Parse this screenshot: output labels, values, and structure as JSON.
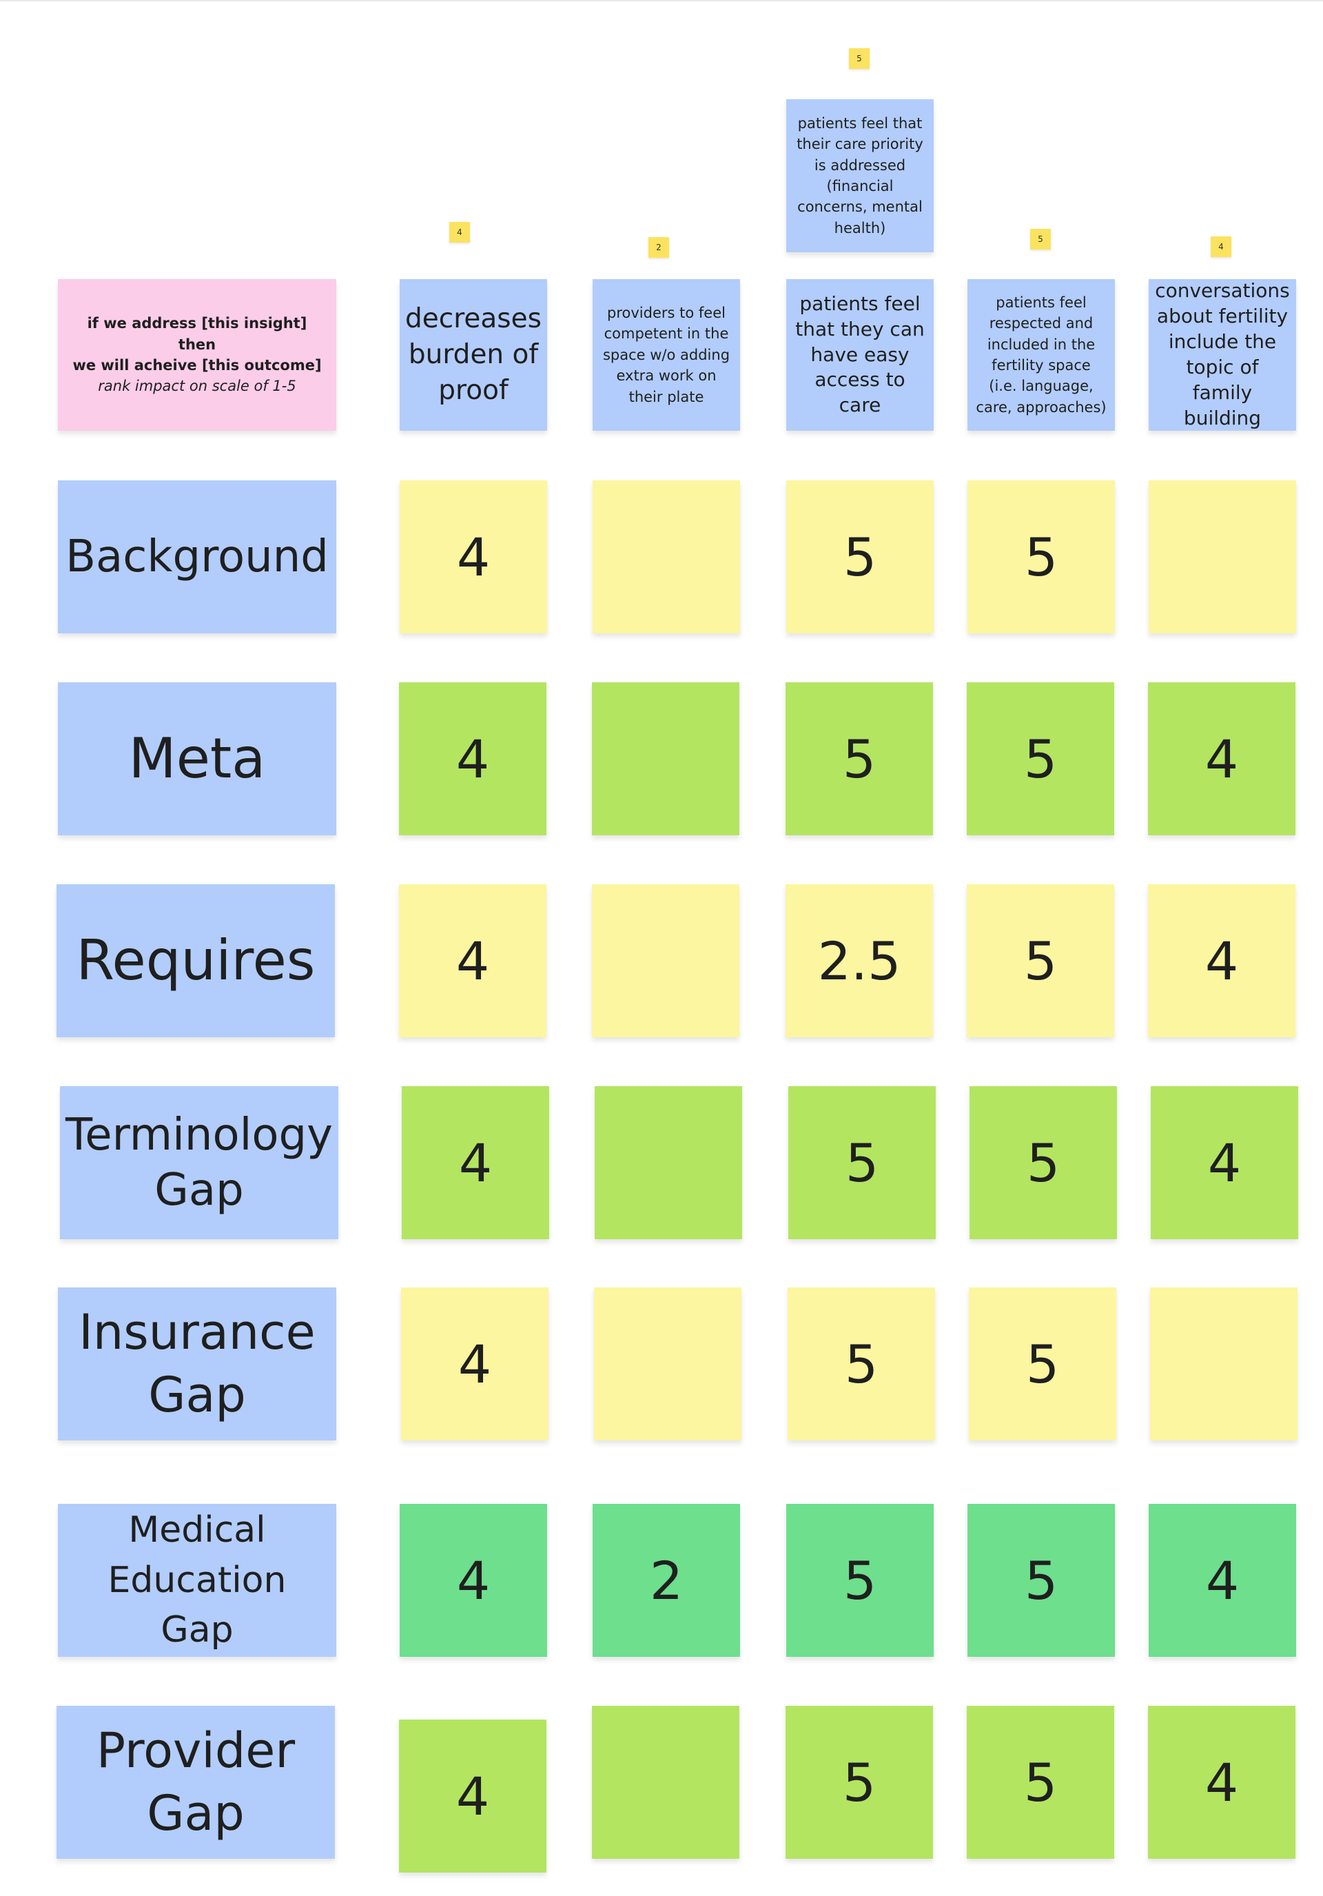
{
  "colors": {
    "blue": "#b2cdfb",
    "pink": "#fbcde9",
    "yellow": "#fcf6a0",
    "lime": "#b3e561",
    "green": "#6ddf8d",
    "tag": "#fbe35f"
  },
  "legend": {
    "line1": "if we address [this insight] then",
    "line2": "we will acheive [this outcome]",
    "line3": "rank impact on scale of 1-5"
  },
  "outcomes": [
    {
      "label": "decreases burden of proof",
      "score": "4"
    },
    {
      "label": "providers to feel competent in the space w/o adding extra work on their plate",
      "score": "2"
    },
    {
      "label": "patients feel that they can have easy access to care",
      "score": ""
    },
    {
      "label": "patients feel respected and included in the fertility space (i.e. language, care, approaches)",
      "score": "5"
    },
    {
      "label": "conversations about fertility include the topic of family building",
      "score": "4"
    }
  ],
  "extra_outcome": {
    "label": "patients feel that their care priority is addressed (financial concerns, mental health)",
    "score": "5"
  },
  "rows": [
    {
      "label": "Background",
      "color": "yellow",
      "values": [
        "4",
        "",
        "5",
        "5",
        ""
      ]
    },
    {
      "label": "Meta",
      "color": "lime",
      "values": [
        "4",
        "",
        "5",
        "5",
        "4"
      ]
    },
    {
      "label": "Requires",
      "color": "yellow",
      "values": [
        "4",
        "",
        "2.5",
        "5",
        "4"
      ]
    },
    {
      "label": "Terminology Gap",
      "color": "lime",
      "values": [
        "4",
        "",
        "5",
        "5",
        "4"
      ]
    },
    {
      "label": "Insurance Gap",
      "color": "yellow",
      "values": [
        "4",
        "",
        "5",
        "5",
        ""
      ]
    },
    {
      "label": "Medical Education Gap",
      "color": "green",
      "values": [
        "4",
        "2",
        "5",
        "5",
        "4"
      ]
    },
    {
      "label": "Provider Gap",
      "color": "lime",
      "values": [
        "4",
        "",
        "5",
        "5",
        "4"
      ]
    }
  ]
}
